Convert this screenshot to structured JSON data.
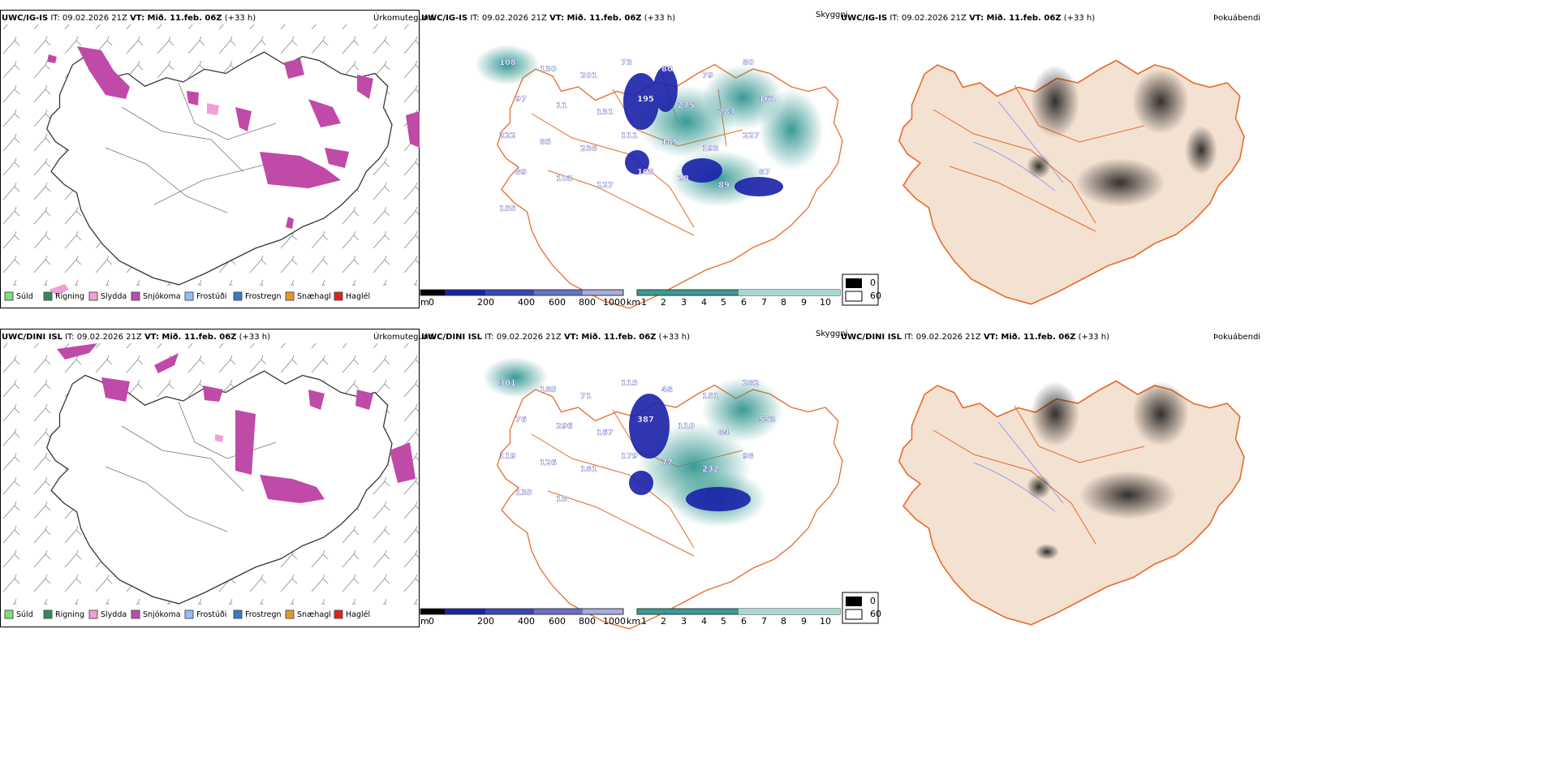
{
  "colors": {
    "suld": "#7ee07e",
    "rigning": "#2e8b57",
    "slydda": "#f0a0d8",
    "snjokoma": "#c04aa8",
    "frostudi": "#8ec0f0",
    "frostregn": "#3a78c8",
    "snaehagl": "#e8982a",
    "haglel": "#e02020",
    "land_fill": "#f3e1d2",
    "roads": "#e86a2a",
    "rivers": "#7a8ef0",
    "cloud_teal": "#3a9a94",
    "cloud_blue": "#1a22a8"
  },
  "rows": [
    {
      "model": "UWC/IG-IS",
      "it_label": "IT:",
      "it_value": "09.02.2026 21Z",
      "vt_label": "VT: Mið. 11.feb. 06Z",
      "lead": "(+33 h)",
      "cloud_labels": [
        "108",
        "130",
        "201",
        "73",
        "80",
        "79",
        "80",
        "97",
        "11",
        "131",
        "195",
        "275",
        "283",
        "161",
        "222",
        "85",
        "238",
        "111",
        "185",
        "193",
        "227",
        "89",
        "103",
        "127",
        "105",
        "28",
        "89",
        "87",
        "155"
      ]
    },
    {
      "model": "UWC/DINI ISL",
      "it_label": "IT:",
      "it_value": "09.02.2026 21Z",
      "vt_label": "VT: Mið. 11.feb. 06Z",
      "lead": "(+33 h)",
      "cloud_labels": [
        "301",
        "185",
        "71",
        "115",
        "48",
        "151",
        "282",
        "76",
        "296",
        "167",
        "387",
        "110",
        "84",
        "553",
        "119",
        "126",
        "181",
        "179",
        "77",
        "232",
        "98",
        "135",
        "18"
      ]
    }
  ],
  "panel_types": {
    "precip": "Úrkomutegund",
    "cloud": "Skyggni",
    "fog": "Þokuábendi"
  },
  "precip_legend": [
    "Súld",
    "Rigning",
    "Slydda",
    "Snjókoma",
    "Frostúði",
    "Frostregn",
    "Snæhagl",
    "Haglél"
  ],
  "cbar_height": {
    "unit": "m",
    "ticks": [
      "0",
      "200",
      "400",
      "600",
      "800",
      "1000"
    ]
  },
  "cbar_vis": {
    "unit": "km",
    "ticks": [
      "1",
      "2",
      "3",
      "4",
      "5",
      "6",
      "7",
      "8",
      "9",
      "10"
    ]
  },
  "fog_legend": {
    "high": "0",
    "low": "60"
  }
}
